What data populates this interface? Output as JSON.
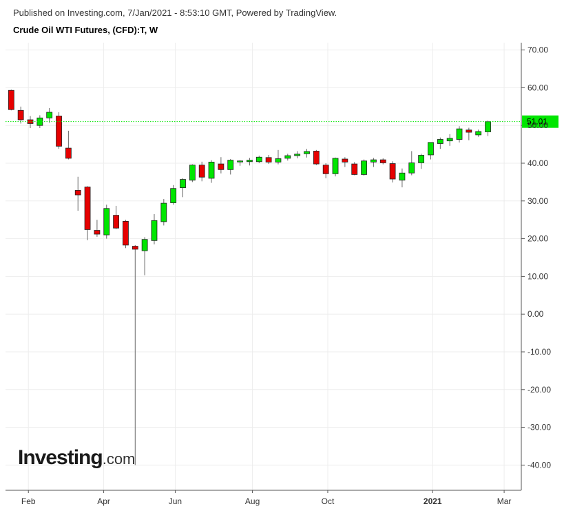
{
  "header": {
    "published": "Published on Investing.com, 7/Jan/2021 - 8:53:10 GMT, Powered by TradingView.",
    "title": "Crude Oil WTI Futures, (CFD):T, W"
  },
  "logo": {
    "main": "Investing",
    "suffix": ".com"
  },
  "chart_data": {
    "type": "candlestick",
    "title": "Crude Oil WTI Futures, (CFD):T, W",
    "y_ticks": [
      "70.00",
      "60.00",
      "50.00",
      "40.00",
      "30.00",
      "20.00",
      "10.00",
      "0.00",
      "-10.00",
      "-20.00",
      "-30.00",
      "-40.00"
    ],
    "y_tick_values": [
      70,
      60,
      50,
      40,
      30,
      20,
      10,
      0,
      -10,
      -20,
      -30,
      -40
    ],
    "ylim": [
      -45,
      72
    ],
    "x_labels": [
      {
        "label": "Feb",
        "week": 1.8,
        "bold": false
      },
      {
        "label": "Apr",
        "week": 9.7,
        "bold": false
      },
      {
        "label": "Jun",
        "week": 17.2,
        "bold": false
      },
      {
        "label": "Aug",
        "week": 25.3,
        "bold": false
      },
      {
        "label": "Oct",
        "week": 33.2,
        "bold": false
      },
      {
        "label": "2021",
        "week": 44.2,
        "bold": true
      },
      {
        "label": "Mar",
        "week": 51.7,
        "bold": false
      }
    ],
    "xlim": [
      -0.6,
      53.5
    ],
    "last_price": {
      "value": 51.01,
      "label": "51.01",
      "color": "#00e600"
    },
    "up_color": "#00e600",
    "down_color": "#e60000",
    "grid": true,
    "candles": [
      {
        "o": 59.3,
        "h": 59.5,
        "l": 54.0,
        "c": 54.2
      },
      {
        "o": 54.0,
        "h": 55.0,
        "l": 50.5,
        "c": 51.5
      },
      {
        "o": 51.5,
        "h": 52.5,
        "l": 49.3,
        "c": 50.5
      },
      {
        "o": 50.0,
        "h": 52.7,
        "l": 49.3,
        "c": 52.0
      },
      {
        "o": 52.0,
        "h": 54.6,
        "l": 50.7,
        "c": 53.5
      },
      {
        "o": 52.5,
        "h": 53.5,
        "l": 43.8,
        "c": 44.5
      },
      {
        "o": 44.0,
        "h": 48.6,
        "l": 41.0,
        "c": 41.3
      },
      {
        "o": 32.8,
        "h": 36.4,
        "l": 27.4,
        "c": 31.6
      },
      {
        "o": 33.7,
        "h": 33.9,
        "l": 19.6,
        "c": 22.4
      },
      {
        "o": 22.2,
        "h": 25.0,
        "l": 20.5,
        "c": 21.2
      },
      {
        "o": 21.0,
        "h": 29.0,
        "l": 20.0,
        "c": 28.0
      },
      {
        "o": 26.2,
        "h": 28.7,
        "l": 22.5,
        "c": 22.8
      },
      {
        "o": 24.6,
        "h": 25.0,
        "l": 17.5,
        "c": 18.3
      },
      {
        "o": 18.0,
        "h": 18.3,
        "l": -40.0,
        "c": 17.2
      },
      {
        "o": 16.8,
        "h": 20.4,
        "l": 10.3,
        "c": 19.8
      },
      {
        "o": 19.5,
        "h": 26.5,
        "l": 18.5,
        "c": 24.8
      },
      {
        "o": 24.5,
        "h": 30.5,
        "l": 23.5,
        "c": 29.4
      },
      {
        "o": 29.5,
        "h": 34.2,
        "l": 29.0,
        "c": 33.3
      },
      {
        "o": 33.5,
        "h": 36.0,
        "l": 31.0,
        "c": 35.7
      },
      {
        "o": 35.5,
        "h": 39.7,
        "l": 35.0,
        "c": 39.5
      },
      {
        "o": 39.5,
        "h": 40.4,
        "l": 35.2,
        "c": 36.3
      },
      {
        "o": 36.0,
        "h": 40.8,
        "l": 34.8,
        "c": 40.3
      },
      {
        "o": 39.8,
        "h": 41.6,
        "l": 37.3,
        "c": 38.3
      },
      {
        "o": 38.3,
        "h": 41.1,
        "l": 37.0,
        "c": 40.8
      },
      {
        "o": 40.4,
        "h": 40.8,
        "l": 39.3,
        "c": 40.6
      },
      {
        "o": 40.4,
        "h": 41.4,
        "l": 39.4,
        "c": 40.8
      },
      {
        "o": 40.4,
        "h": 42.0,
        "l": 40.0,
        "c": 41.6
      },
      {
        "o": 41.5,
        "h": 42.2,
        "l": 39.8,
        "c": 40.3
      },
      {
        "o": 40.3,
        "h": 43.5,
        "l": 39.7,
        "c": 41.2
      },
      {
        "o": 41.3,
        "h": 42.5,
        "l": 40.7,
        "c": 42.0
      },
      {
        "o": 42.0,
        "h": 43.2,
        "l": 41.3,
        "c": 42.4
      },
      {
        "o": 42.5,
        "h": 43.8,
        "l": 41.5,
        "c": 43.1
      },
      {
        "o": 43.2,
        "h": 43.5,
        "l": 39.5,
        "c": 39.8
      },
      {
        "o": 39.5,
        "h": 40.0,
        "l": 36.0,
        "c": 37.2
      },
      {
        "o": 37.2,
        "h": 41.5,
        "l": 36.5,
        "c": 41.3
      },
      {
        "o": 41.1,
        "h": 41.6,
        "l": 39.0,
        "c": 40.3
      },
      {
        "o": 39.8,
        "h": 40.3,
        "l": 36.8,
        "c": 37.0
      },
      {
        "o": 37.0,
        "h": 41.0,
        "l": 36.7,
        "c": 40.6
      },
      {
        "o": 40.3,
        "h": 41.4,
        "l": 39.0,
        "c": 40.9
      },
      {
        "o": 40.9,
        "h": 41.3,
        "l": 39.7,
        "c": 40.1
      },
      {
        "o": 39.9,
        "h": 40.5,
        "l": 34.9,
        "c": 35.8
      },
      {
        "o": 35.5,
        "h": 38.6,
        "l": 33.6,
        "c": 37.4
      },
      {
        "o": 37.4,
        "h": 43.2,
        "l": 36.8,
        "c": 40.1
      },
      {
        "o": 40.1,
        "h": 42.5,
        "l": 38.5,
        "c": 42.1
      },
      {
        "o": 42.2,
        "h": 45.5,
        "l": 41.0,
        "c": 45.5
      },
      {
        "o": 45.2,
        "h": 46.8,
        "l": 43.8,
        "c": 46.3
      },
      {
        "o": 45.9,
        "h": 47.7,
        "l": 44.6,
        "c": 46.6
      },
      {
        "o": 46.3,
        "h": 49.8,
        "l": 45.5,
        "c": 49.1
      },
      {
        "o": 48.8,
        "h": 49.4,
        "l": 46.1,
        "c": 48.2
      },
      {
        "o": 47.5,
        "h": 48.9,
        "l": 47.0,
        "c": 48.4
      },
      {
        "o": 48.3,
        "h": 51.3,
        "l": 47.2,
        "c": 51.0
      }
    ]
  }
}
